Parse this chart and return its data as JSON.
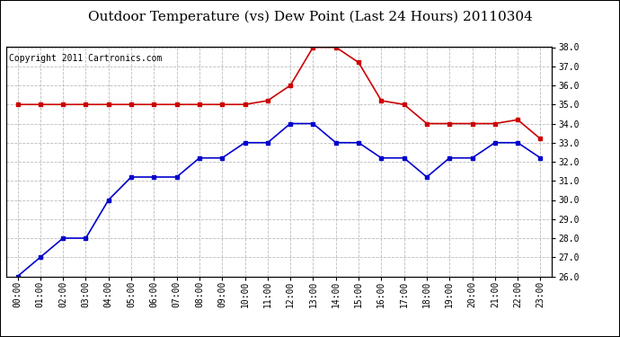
{
  "title": "Outdoor Temperature (vs) Dew Point (Last 24 Hours) 20110304",
  "copyright_text": "Copyright 2011 Cartronics.com",
  "hours": [
    "00:00",
    "01:00",
    "02:00",
    "03:00",
    "04:00",
    "05:00",
    "06:00",
    "07:00",
    "08:00",
    "09:00",
    "10:00",
    "11:00",
    "12:00",
    "13:00",
    "14:00",
    "15:00",
    "16:00",
    "17:00",
    "18:00",
    "19:00",
    "20:00",
    "21:00",
    "22:00",
    "23:00"
  ],
  "temp_data": [
    26.0,
    27.0,
    28.0,
    28.0,
    30.0,
    31.2,
    31.2,
    31.2,
    32.2,
    32.2,
    33.0,
    33.0,
    34.0,
    34.0,
    33.0,
    33.0,
    32.2,
    32.2,
    31.2,
    32.2,
    32.2,
    33.0,
    33.0,
    32.2
  ],
  "dew_data": [
    35.0,
    35.0,
    35.0,
    35.0,
    35.0,
    35.0,
    35.0,
    35.0,
    35.0,
    35.0,
    35.0,
    35.2,
    36.0,
    38.0,
    38.0,
    37.2,
    35.2,
    35.0,
    34.0,
    34.0,
    34.0,
    34.0,
    34.2,
    33.2
  ],
  "temp_color": "#0000cc",
  "dew_color": "#cc0000",
  "ylim_min": 26.0,
  "ylim_max": 38.0,
  "ytick_step": 1.0,
  "background_color": "#ffffff",
  "plot_bg_color": "#ffffff",
  "grid_color": "#bbbbbb",
  "title_fontsize": 11,
  "copyright_fontsize": 7,
  "tick_fontsize": 7,
  "marker": "s",
  "markersize": 3,
  "linewidth": 1.2
}
